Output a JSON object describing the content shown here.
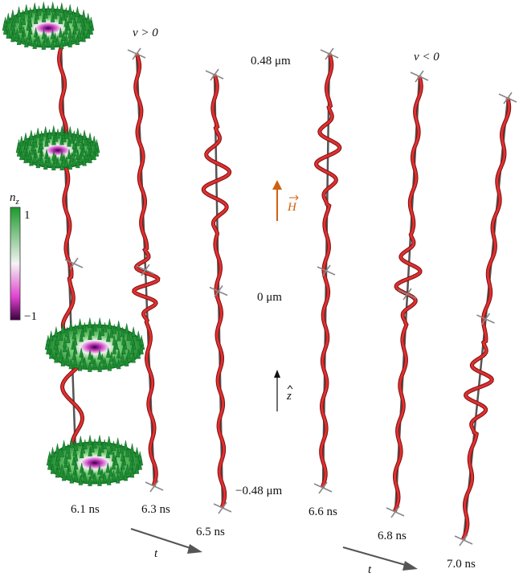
{
  "headings": {
    "positive": "v > 0",
    "negative": "v < 0"
  },
  "scale_labels": [
    "0.48 μm",
    "0 μm",
    "−0.48 μm"
  ],
  "times": [
    "6.1 ns",
    "6.3 ns",
    "6.5 ns",
    "6.6 ns",
    "6.8 ns",
    "7.0 ns"
  ],
  "time_arrows": [
    "t",
    "t"
  ],
  "field": "H",
  "direction": "z",
  "colorbar": {
    "symbol": "n",
    "subscript": "z",
    "max": "1",
    "min": "−1"
  }
}
